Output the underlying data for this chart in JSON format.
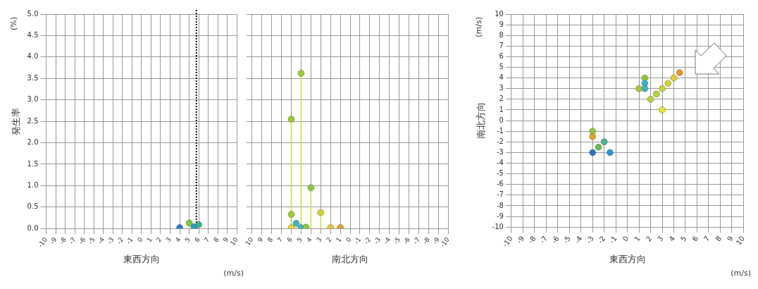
{
  "chart_data": [
    {
      "type": "lollipop",
      "xlabel": "東西方向",
      "ylabel": "発生率",
      "annotations": [
        "(%)",
        "(m/s)"
      ],
      "xlim": [
        -10,
        10
      ],
      "xticks": [
        -10,
        -9,
        -8,
        -7,
        -6,
        -5,
        -4,
        -3,
        -2,
        -1,
        0,
        1,
        2,
        3,
        4,
        5,
        6,
        7,
        8,
        9,
        10
      ],
      "ylim": [
        0,
        5
      ],
      "yticks": [
        {
          "value": 0,
          "label": "0.0"
        },
        0.5,
        {
          "value": 1,
          "label": "1.0"
        },
        1.5,
        {
          "value": 2,
          "label": "2.0"
        },
        2.5,
        {
          "value": 3,
          "label": "3.0"
        },
        3.5,
        {
          "value": 4,
          "label": "4.0"
        },
        4.5,
        {
          "value": 5,
          "label": "5.0"
        }
      ],
      "grid": true,
      "marker": "circle",
      "color": "#c8e03c",
      "x": [
        4,
        5,
        5.5,
        6
      ],
      "values": [
        0.02,
        0.13,
        0.04,
        0.09
      ],
      "colors": [
        "#2878c8",
        "#78c83c",
        "#3296d2",
        "#3cb48c"
      ],
      "ref_lines": [
        {
          "axis": "x",
          "value": 5.75,
          "color": "#111111",
          "line_style": "dotted"
        }
      ]
    },
    {
      "type": "lollipop",
      "xlabel": "南北方向",
      "xlim": [
        10,
        -10
      ],
      "xticks": [
        10,
        9,
        8,
        7,
        6,
        5,
        4,
        3,
        2,
        1,
        0,
        -1,
        -2,
        -3,
        -4,
        -5,
        -6,
        -7,
        -8,
        -9,
        -10
      ],
      "ylim": [
        0,
        5
      ],
      "yticks": [
        0,
        0.5,
        1,
        1.5,
        2,
        2.5,
        3,
        3.5,
        4,
        4.5,
        5
      ],
      "tick_labels": "x",
      "grid": true,
      "marker": "circle",
      "color": "#c8e03c",
      "x": [
        6,
        6,
        6,
        5.5,
        5,
        5,
        4.5,
        4,
        3,
        2,
        1
      ],
      "values": [
        2.55,
        0.33,
        0.02,
        0.12,
        3.62,
        0.02,
        0.03,
        0.95,
        0.37,
        0.02,
        0.02
      ],
      "colors": [
        "#a0c832",
        "#a0c832",
        "#e6d232",
        "#3cb4c8",
        "#a0c832",
        "#3cb4c8",
        "#8cc83c",
        "#8cc83c",
        "#d2d232",
        "#e6c832",
        "#e6a028"
      ]
    },
    {
      "type": "scatter",
      "xlabel": "東西方向",
      "ylabel": "南北方向",
      "annotations": [
        "(m/s)",
        "(m/s)"
      ],
      "xlim": [
        -10,
        10
      ],
      "xticks": [
        -10,
        -9,
        -8,
        -7,
        -6,
        -5,
        -4,
        -3,
        -2,
        -1,
        0,
        1,
        2,
        3,
        4,
        5,
        6,
        7,
        8,
        9,
        10
      ],
      "ylim": [
        -10,
        10
      ],
      "yticks": [
        -10,
        -9,
        -8,
        -7,
        -6,
        -5,
        -4,
        -3,
        -2,
        -1,
        0,
        1,
        2,
        3,
        4,
        5,
        6,
        7,
        8,
        9,
        10
      ],
      "grid": true,
      "marker": "circle",
      "x": [
        1,
        1.5,
        1.5,
        1.5,
        2,
        2.5,
        3,
        3.5,
        4,
        4.5,
        3,
        -3,
        -3,
        -2,
        -2.5,
        -3,
        -1.5
      ],
      "values": [
        3,
        4,
        3.5,
        3,
        2,
        2.5,
        3,
        3.5,
        4,
        4.5,
        1,
        -1,
        -1.5,
        -2,
        -2.5,
        -3,
        -3
      ],
      "colors": [
        "#a8c832",
        "#8cc83c",
        "#3cb4c8",
        "#3cb4c8",
        "#b4d23c",
        "#b4d23c",
        "#c8d23c",
        "#d2d232",
        "#e6c832",
        "#e69628",
        "#e6e632",
        "#8cc83c",
        "#e6a028",
        "#46b48c",
        "#64be50",
        "#2878c8",
        "#2896d2"
      ]
    }
  ]
}
